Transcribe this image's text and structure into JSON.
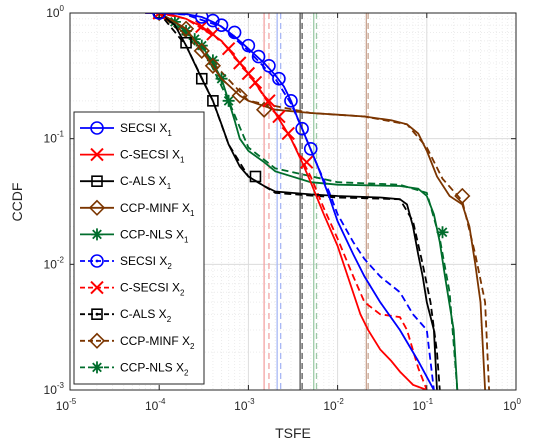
{
  "chart_data": {
    "type": "line",
    "xlabel": "TSFE",
    "ylabel": "CCDF",
    "xscale": "log",
    "yscale": "log",
    "xlim": [
      1e-05,
      1
    ],
    "ylim": [
      0.001,
      1
    ],
    "grid": "on (major and minor)",
    "legend_position": "left",
    "x_tick_labels": [
      {
        "base": "10",
        "exp": "-5"
      },
      {
        "base": "10",
        "exp": "-4"
      },
      {
        "base": "10",
        "exp": "-3"
      },
      {
        "base": "10",
        "exp": "-2"
      },
      {
        "base": "10",
        "exp": "-1"
      },
      {
        "base": "10",
        "exp": "0"
      }
    ],
    "y_tick_labels": [
      {
        "base": "10",
        "exp": "-3"
      },
      {
        "base": "10",
        "exp": "-2"
      },
      {
        "base": "10",
        "exp": "-1"
      },
      {
        "base": "10",
        "exp": "0"
      }
    ],
    "vertical_lines": [
      {
        "x": 0.0015,
        "color": "#f3a3a3",
        "style": "solid"
      },
      {
        "x": 0.0017,
        "color": "#f3a3a3",
        "style": "dashed"
      },
      {
        "x": 0.0021,
        "color": "#a8b8f5",
        "style": "solid"
      },
      {
        "x": 0.0023,
        "color": "#a8b8f5",
        "style": "dashed"
      },
      {
        "x": 0.0038,
        "color": "#555555",
        "style": "solid"
      },
      {
        "x": 0.004,
        "color": "#555555",
        "style": "dashed"
      },
      {
        "x": 0.0054,
        "color": "#9ccaa6",
        "style": "solid"
      },
      {
        "x": 0.0058,
        "color": "#9ccaa6",
        "style": "dashed"
      },
      {
        "x": 0.021,
        "color": "#c9a592",
        "style": "solid"
      },
      {
        "x": 0.022,
        "color": "#c9a592",
        "style": "dashed"
      }
    ],
    "series": [
      {
        "name": "SECSI X",
        "sub": "1",
        "color": "#0000ff",
        "dash": "solid",
        "marker": "circle",
        "points": [
          [
            7e-05,
            1
          ],
          [
            0.0001,
            1
          ],
          [
            0.0002,
            0.98
          ],
          [
            0.0003,
            0.93
          ],
          [
            0.0004,
            0.85
          ],
          [
            0.0005,
            0.78
          ],
          [
            0.0007,
            0.65
          ],
          [
            0.001,
            0.52
          ],
          [
            0.0015,
            0.4
          ],
          [
            0.002,
            0.32
          ],
          [
            0.0025,
            0.26
          ],
          [
            0.003,
            0.2
          ],
          [
            0.0035,
            0.15
          ],
          [
            0.004,
            0.12
          ],
          [
            0.005,
            0.082
          ],
          [
            0.006,
            0.06
          ],
          [
            0.008,
            0.035
          ],
          [
            0.01,
            0.022
          ],
          [
            0.015,
            0.012
          ],
          [
            0.02,
            0.008
          ],
          [
            0.03,
            0.005
          ],
          [
            0.05,
            0.003
          ],
          [
            0.08,
            0.0017
          ],
          [
            0.12,
            0.001
          ]
        ],
        "markers": [
          [
            0.0001,
            1
          ],
          [
            0.0003,
            0.93
          ],
          [
            0.0004,
            0.87
          ],
          [
            0.0005,
            0.8
          ],
          [
            0.0007,
            0.7
          ],
          [
            0.001,
            0.55
          ],
          [
            0.0013,
            0.45
          ],
          [
            0.0017,
            0.38
          ],
          [
            0.0022,
            0.3
          ],
          [
            0.003,
            0.2
          ],
          [
            0.004,
            0.12
          ],
          [
            0.005,
            0.083
          ]
        ]
      },
      {
        "name": "C-SECSI X",
        "sub": "1",
        "color": "#ff0000",
        "dash": "solid",
        "marker": "x",
        "points": [
          [
            7e-05,
            1
          ],
          [
            0.0001,
            1
          ],
          [
            0.00015,
            0.95
          ],
          [
            0.0002,
            0.9
          ],
          [
            0.0003,
            0.78
          ],
          [
            0.0005,
            0.6
          ],
          [
            0.0007,
            0.45
          ],
          [
            0.001,
            0.33
          ],
          [
            0.0015,
            0.22
          ],
          [
            0.002,
            0.16
          ],
          [
            0.003,
            0.1
          ],
          [
            0.004,
            0.065
          ],
          [
            0.005,
            0.045
          ],
          [
            0.007,
            0.025
          ],
          [
            0.01,
            0.014
          ],
          [
            0.013,
            0.008
          ],
          [
            0.018,
            0.004
          ],
          [
            0.022,
            0.003
          ],
          [
            0.03,
            0.0021
          ],
          [
            0.04,
            0.0017
          ],
          [
            0.05,
            0.0014
          ],
          [
            0.07,
            0.0011
          ],
          [
            0.1,
            0.001
          ]
        ],
        "markers": [
          [
            0.0001,
            1
          ],
          [
            0.0003,
            0.78
          ],
          [
            0.0004,
            0.68
          ],
          [
            0.0006,
            0.52
          ],
          [
            0.0008,
            0.4
          ],
          [
            0.001,
            0.33
          ],
          [
            0.0012,
            0.28
          ],
          [
            0.0017,
            0.2
          ],
          [
            0.0022,
            0.15
          ],
          [
            0.0028,
            0.11
          ],
          [
            0.0045,
            0.065
          ]
        ]
      },
      {
        "name": "C-ALS X",
        "sub": "1",
        "color": "#000000",
        "dash": "solid",
        "marker": "square",
        "points": [
          [
            7e-05,
            1
          ],
          [
            0.0001,
            1
          ],
          [
            0.00015,
            0.8
          ],
          [
            0.0002,
            0.55
          ],
          [
            0.0003,
            0.3
          ],
          [
            0.0004,
            0.2
          ],
          [
            0.0005,
            0.13
          ],
          [
            0.0006,
            0.09
          ],
          [
            0.0008,
            0.06
          ],
          [
            0.001,
            0.05
          ],
          [
            0.0015,
            0.042
          ],
          [
            0.002,
            0.038
          ],
          [
            0.005,
            0.036
          ],
          [
            0.01,
            0.035
          ],
          [
            0.03,
            0.034
          ],
          [
            0.05,
            0.033
          ],
          [
            0.06,
            0.03
          ],
          [
            0.07,
            0.02
          ],
          [
            0.08,
            0.012
          ],
          [
            0.09,
            0.008
          ],
          [
            0.1,
            0.005
          ],
          [
            0.12,
            0.003
          ],
          [
            0.13,
            0.001
          ]
        ],
        "markers": [
          [
            0.0001,
            1
          ],
          [
            0.0002,
            0.58
          ],
          [
            0.0003,
            0.3
          ],
          [
            0.0004,
            0.2
          ],
          [
            0.0012,
            0.05
          ]
        ]
      },
      {
        "name": "CCP-MINF X",
        "sub": "1",
        "color": "#7b3500",
        "dash": "solid",
        "marker": "diamond",
        "points": [
          [
            7e-05,
            1
          ],
          [
            0.0001,
            1
          ],
          [
            0.0002,
            0.75
          ],
          [
            0.0003,
            0.5
          ],
          [
            0.0005,
            0.3
          ],
          [
            0.0008,
            0.22
          ],
          [
            0.001,
            0.2
          ],
          [
            0.002,
            0.17
          ],
          [
            0.005,
            0.16
          ],
          [
            0.01,
            0.155
          ],
          [
            0.02,
            0.15
          ],
          [
            0.04,
            0.14
          ],
          [
            0.06,
            0.13
          ],
          [
            0.08,
            0.11
          ],
          [
            0.1,
            0.08
          ],
          [
            0.13,
            0.05
          ],
          [
            0.18,
            0.035
          ],
          [
            0.25,
            0.03
          ],
          [
            0.3,
            0.02
          ],
          [
            0.35,
            0.01
          ],
          [
            0.4,
            0.005
          ],
          [
            0.45,
            0.001
          ]
        ],
        "markers": [
          [
            0.0001,
            1
          ],
          [
            0.0002,
            0.75
          ],
          [
            0.0003,
            0.5
          ],
          [
            0.0004,
            0.38
          ],
          [
            0.0008,
            0.22
          ],
          [
            0.0015,
            0.17
          ],
          [
            0.25,
            0.035
          ]
        ]
      },
      {
        "name": "CCP-NLS X",
        "sub": "1",
        "color": "#006d2c",
        "dash": "solid",
        "marker": "star",
        "points": [
          [
            7e-05,
            1
          ],
          [
            0.0001,
            1
          ],
          [
            0.00015,
            0.85
          ],
          [
            0.0002,
            0.7
          ],
          [
            0.0003,
            0.55
          ],
          [
            0.0004,
            0.4
          ],
          [
            0.0005,
            0.3
          ],
          [
            0.0006,
            0.2
          ],
          [
            0.0007,
            0.14
          ],
          [
            0.0008,
            0.1
          ],
          [
            0.001,
            0.08
          ],
          [
            0.0015,
            0.065
          ],
          [
            0.002,
            0.055
          ],
          [
            0.005,
            0.045
          ],
          [
            0.01,
            0.043
          ],
          [
            0.05,
            0.042
          ],
          [
            0.08,
            0.04
          ],
          [
            0.1,
            0.035
          ],
          [
            0.12,
            0.025
          ],
          [
            0.14,
            0.015
          ],
          [
            0.16,
            0.008
          ],
          [
            0.2,
            0.003
          ],
          [
            0.22,
            0.001
          ]
        ],
        "markers": [
          [
            0.0001,
            1
          ],
          [
            0.00015,
            0.85
          ],
          [
            0.0002,
            0.72
          ],
          [
            0.00025,
            0.62
          ],
          [
            0.0003,
            0.55
          ],
          [
            0.0004,
            0.42
          ],
          [
            0.0005,
            0.3
          ],
          [
            0.0006,
            0.2
          ],
          [
            0.15,
            0.018
          ]
        ]
      },
      {
        "name": "SECSI X",
        "sub": "2",
        "color": "#0000ff",
        "dash": "dashed",
        "marker": "circle-dot",
        "points": [
          [
            7e-05,
            1
          ],
          [
            0.0001,
            1
          ],
          [
            0.0002,
            0.97
          ],
          [
            0.0005,
            0.78
          ],
          [
            0.001,
            0.5
          ],
          [
            0.002,
            0.3
          ],
          [
            0.003,
            0.19
          ],
          [
            0.004,
            0.12
          ],
          [
            0.006,
            0.06
          ],
          [
            0.008,
            0.038
          ],
          [
            0.01,
            0.025
          ],
          [
            0.015,
            0.015
          ],
          [
            0.02,
            0.011
          ],
          [
            0.03,
            0.008
          ],
          [
            0.05,
            0.006
          ],
          [
            0.07,
            0.004
          ],
          [
            0.1,
            0.003
          ],
          [
            0.12,
            0.001
          ]
        ],
        "markers": []
      },
      {
        "name": "C-SECSI X",
        "sub": "2",
        "color": "#ff0000",
        "dash": "dashed",
        "marker": "x",
        "points": [
          [
            7e-05,
            1
          ],
          [
            0.0001,
            1
          ],
          [
            0.0002,
            0.9
          ],
          [
            0.0005,
            0.6
          ],
          [
            0.001,
            0.33
          ],
          [
            0.002,
            0.16
          ],
          [
            0.003,
            0.1
          ],
          [
            0.005,
            0.05
          ],
          [
            0.007,
            0.028
          ],
          [
            0.01,
            0.016
          ],
          [
            0.015,
            0.008
          ],
          [
            0.02,
            0.005
          ],
          [
            0.03,
            0.004
          ],
          [
            0.05,
            0.0038
          ],
          [
            0.06,
            0.003
          ],
          [
            0.08,
            0.0015
          ],
          [
            0.1,
            0.001
          ]
        ],
        "markers": []
      },
      {
        "name": "C-ALS X",
        "sub": "2",
        "color": "#000000",
        "dash": "dashed",
        "marker": "square-dot",
        "points": [
          [
            7e-05,
            1
          ],
          [
            0.0001,
            1
          ],
          [
            0.0002,
            0.55
          ],
          [
            0.0004,
            0.2
          ],
          [
            0.0006,
            0.09
          ],
          [
            0.001,
            0.05
          ],
          [
            0.002,
            0.037
          ],
          [
            0.01,
            0.034
          ],
          [
            0.05,
            0.033
          ],
          [
            0.07,
            0.022
          ],
          [
            0.09,
            0.01
          ],
          [
            0.11,
            0.005
          ],
          [
            0.13,
            0.002
          ],
          [
            0.14,
            0.001
          ]
        ],
        "markers": []
      },
      {
        "name": "CCP-MINF X",
        "sub": "2",
        "color": "#7b3500",
        "dash": "dashed",
        "marker": "diamond",
        "points": [
          [
            7e-05,
            1
          ],
          [
            0.0001,
            1
          ],
          [
            0.0003,
            0.5
          ],
          [
            0.001,
            0.2
          ],
          [
            0.005,
            0.16
          ],
          [
            0.02,
            0.15
          ],
          [
            0.06,
            0.13
          ],
          [
            0.1,
            0.085
          ],
          [
            0.15,
            0.048
          ],
          [
            0.25,
            0.032
          ],
          [
            0.35,
            0.012
          ],
          [
            0.45,
            0.005
          ],
          [
            0.5,
            0.001
          ]
        ],
        "markers": []
      },
      {
        "name": "CCP-NLS X",
        "sub": "2",
        "color": "#006d2c",
        "dash": "dashed",
        "marker": "star",
        "points": [
          [
            7e-05,
            1
          ],
          [
            0.0001,
            1
          ],
          [
            0.0003,
            0.55
          ],
          [
            0.0006,
            0.2
          ],
          [
            0.001,
            0.085
          ],
          [
            0.002,
            0.058
          ],
          [
            0.01,
            0.045
          ],
          [
            0.05,
            0.043
          ],
          [
            0.1,
            0.037
          ],
          [
            0.14,
            0.016
          ],
          [
            0.18,
            0.006
          ],
          [
            0.22,
            0.001
          ]
        ],
        "markers": []
      }
    ]
  }
}
